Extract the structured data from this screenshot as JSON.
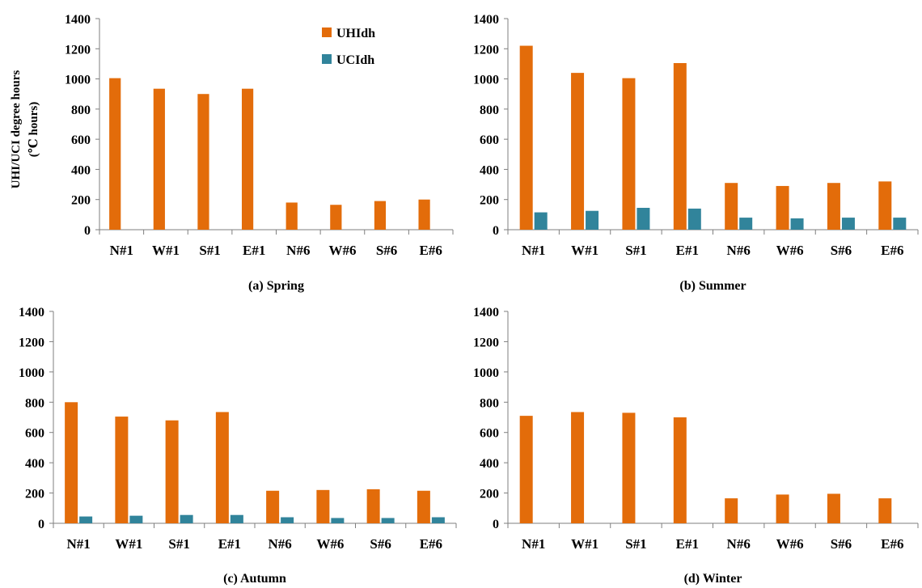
{
  "colors": {
    "uhi": "#E36C0A",
    "uci": "#31849B",
    "axis": "#7f7f7f"
  },
  "y_axis_label": [
    "UHI/UCI degree hours",
    "(℃ hours)"
  ],
  "legend": [
    "UHIdh",
    "UCIdh"
  ],
  "chart_data": [
    {
      "type": "bar",
      "caption": "(a) Spring",
      "categories": [
        "N#1",
        "W#1",
        "S#1",
        "E#1",
        "N#6",
        "W#6",
        "S#6",
        "E#6"
      ],
      "series": [
        {
          "name": "UHIdh",
          "values": [
            1005,
            935,
            900,
            935,
            180,
            165,
            190,
            200
          ]
        },
        {
          "name": "UCIdh",
          "values": [
            0,
            0,
            0,
            0,
            0,
            0,
            0,
            0
          ]
        }
      ],
      "ylim": [
        0,
        1400
      ],
      "yticks": [
        0,
        200,
        400,
        600,
        800,
        1000,
        1200,
        1400
      ]
    },
    {
      "type": "bar",
      "caption": "(b) Summer",
      "categories": [
        "N#1",
        "W#1",
        "S#1",
        "E#1",
        "N#6",
        "W#6",
        "S#6",
        "E#6"
      ],
      "series": [
        {
          "name": "UHIdh",
          "values": [
            1220,
            1040,
            1005,
            1105,
            310,
            290,
            310,
            320
          ]
        },
        {
          "name": "UCIdh",
          "values": [
            115,
            125,
            145,
            140,
            80,
            75,
            80,
            80
          ]
        }
      ],
      "ylim": [
        0,
        1400
      ],
      "yticks": [
        0,
        200,
        400,
        600,
        800,
        1000,
        1200,
        1400
      ]
    },
    {
      "type": "bar",
      "caption": "(c) Autumn",
      "categories": [
        "N#1",
        "W#1",
        "S#1",
        "E#1",
        "N#6",
        "W#6",
        "S#6",
        "E#6"
      ],
      "series": [
        {
          "name": "UHIdh",
          "values": [
            800,
            705,
            680,
            735,
            215,
            220,
            225,
            215
          ]
        },
        {
          "name": "UCIdh",
          "values": [
            45,
            50,
            55,
            55,
            40,
            35,
            35,
            40
          ]
        }
      ],
      "ylim": [
        0,
        1400
      ],
      "yticks": [
        0,
        200,
        400,
        600,
        800,
        1000,
        1200,
        1400
      ]
    },
    {
      "type": "bar",
      "caption": "(d) Winter",
      "categories": [
        "N#1",
        "W#1",
        "S#1",
        "E#1",
        "N#6",
        "W#6",
        "S#6",
        "E#6"
      ],
      "series": [
        {
          "name": "UHIdh",
          "values": [
            710,
            735,
            730,
            700,
            165,
            190,
            195,
            165
          ]
        },
        {
          "name": "UCIdh",
          "values": [
            0,
            0,
            0,
            0,
            0,
            0,
            0,
            0
          ]
        }
      ],
      "ylim": [
        0,
        1400
      ],
      "yticks": [
        0,
        200,
        400,
        600,
        800,
        1000,
        1200,
        1400
      ]
    }
  ]
}
